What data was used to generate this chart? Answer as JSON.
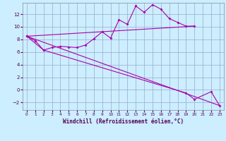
{
  "xlabel": "Windchill (Refroidissement éolien,°C)",
  "background_color": "#cceeff",
  "grid_color": "#99aacc",
  "line_color": "#aa00aa",
  "x_ticks": [
    0,
    1,
    2,
    3,
    4,
    5,
    6,
    7,
    8,
    9,
    10,
    11,
    12,
    13,
    14,
    15,
    16,
    17,
    18,
    19,
    20,
    21,
    22,
    23
  ],
  "y_ticks": [
    -2,
    0,
    2,
    4,
    6,
    8,
    10,
    12
  ],
  "ylim": [
    -3.2,
    13.8
  ],
  "xlim": [
    -0.5,
    23.5
  ],
  "line1_x": [
    0,
    1,
    2,
    3,
    4,
    5,
    6,
    7,
    8,
    9,
    10,
    11,
    12,
    13,
    14,
    15,
    16,
    17,
    18,
    19,
    20
  ],
  "line1_y": [
    8.5,
    7.8,
    6.3,
    6.7,
    6.9,
    6.8,
    6.7,
    7.1,
    8.1,
    9.2,
    8.2,
    11.1,
    10.4,
    13.3,
    12.3,
    13.5,
    12.8,
    11.3,
    10.7,
    10.1,
    10.1
  ],
  "line2_x": [
    0,
    20
  ],
  "line2_y": [
    8.5,
    10.1
  ],
  "line4_x": [
    0,
    23
  ],
  "line4_y": [
    8.5,
    -2.5
  ],
  "line5_x": [
    0,
    2,
    19,
    20,
    22,
    23
  ],
  "line5_y": [
    8.5,
    6.3,
    -0.5,
    -1.5,
    -0.3,
    -2.5
  ]
}
